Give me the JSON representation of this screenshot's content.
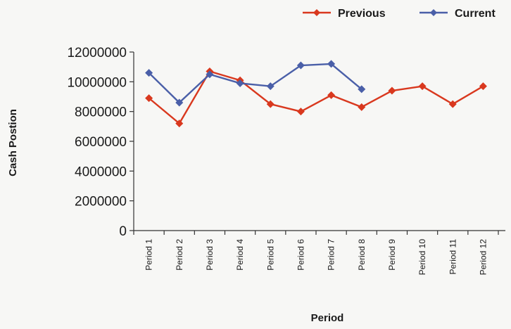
{
  "chart_data": {
    "type": "line",
    "title": "",
    "xlabel": "Period",
    "ylabel": "Cash Postion",
    "categories": [
      "Period 1",
      "Period 2",
      "Period 3",
      "Period 4",
      "Period 5",
      "Period 6",
      "Period 7",
      "Period 8",
      "Period 9",
      "Period 10",
      "Period 11",
      "Period 12"
    ],
    "ylim": [
      0,
      12000000
    ],
    "yticks": [
      "0",
      "2000000",
      "4000000",
      "6000000",
      "8000000",
      "10000000",
      "12000000"
    ],
    "grid": false,
    "legend_position": "top-right",
    "series": [
      {
        "name": "Previous",
        "color": "#d9381e",
        "values": [
          8900000,
          7200000,
          10700000,
          10100000,
          8500000,
          8000000,
          9100000,
          8300000,
          9400000,
          9700000,
          8500000,
          9700000
        ]
      },
      {
        "name": "Current",
        "color": "#4a5fa8",
        "values": [
          10600000,
          8600000,
          10500000,
          9900000,
          9700000,
          11100000,
          11200000,
          9500000,
          null,
          null,
          null,
          null
        ]
      }
    ]
  }
}
